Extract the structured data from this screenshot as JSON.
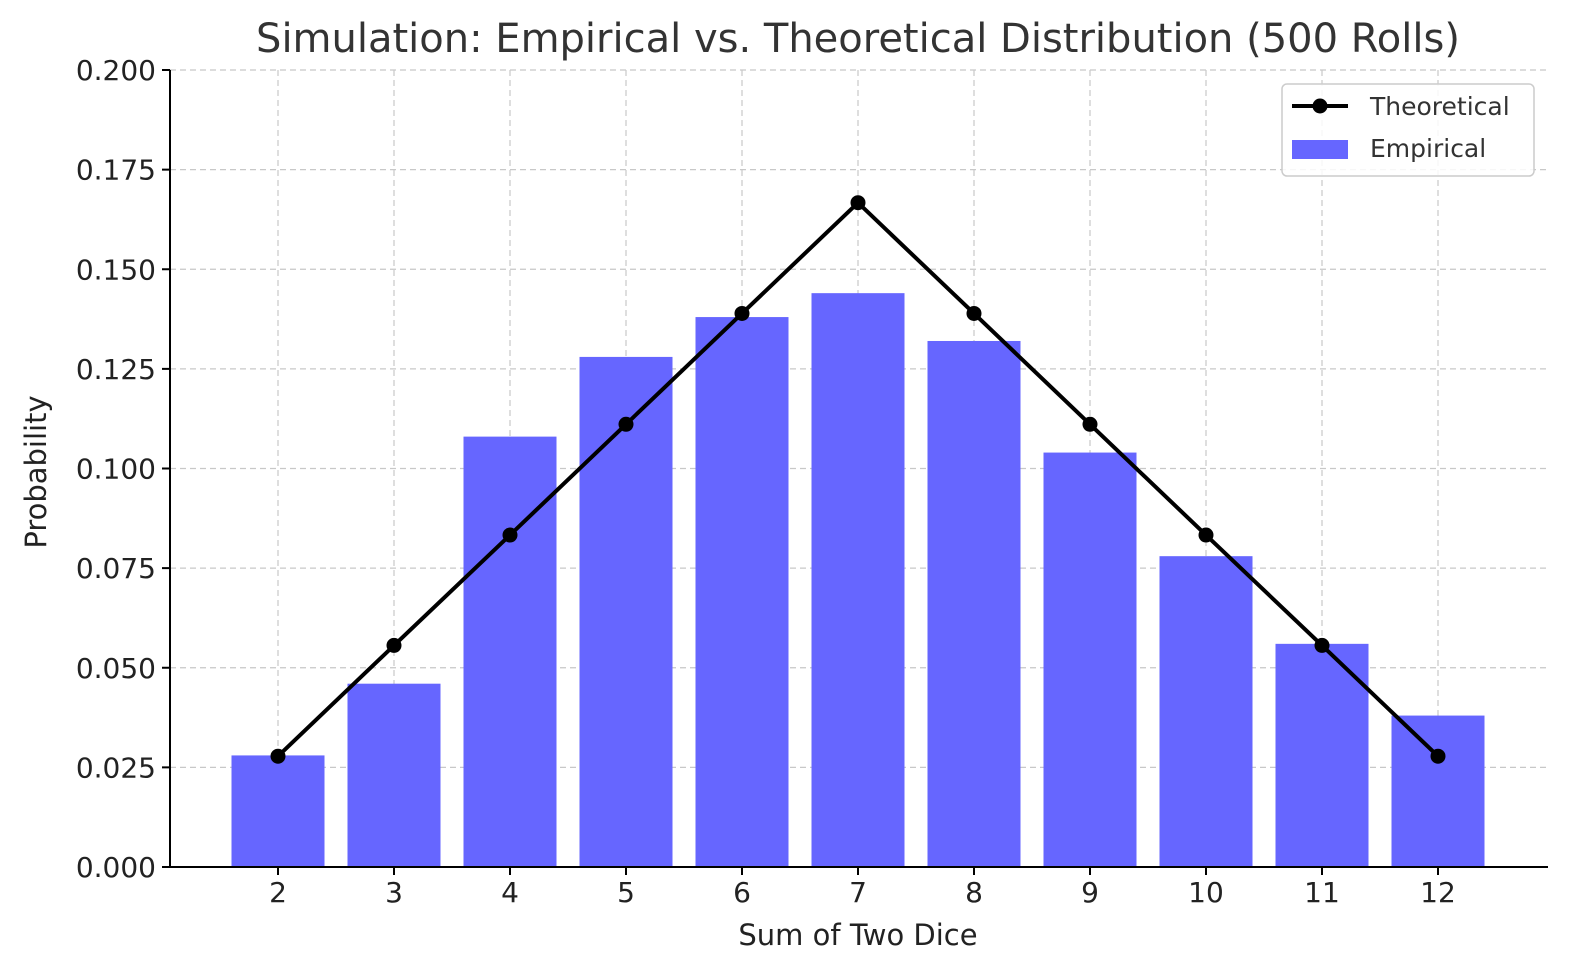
{
  "chart_data": {
    "type": "bar",
    "title": "Simulation: Empirical vs. Theoretical Distribution (500 Rolls)",
    "xlabel": "Sum of Two Dice",
    "ylabel": "Probability",
    "categories": [
      "2",
      "3",
      "4",
      "5",
      "6",
      "7",
      "8",
      "9",
      "10",
      "11",
      "12"
    ],
    "ylim": [
      0,
      0.2
    ],
    "yticks": [
      "0.000",
      "0.025",
      "0.050",
      "0.075",
      "0.100",
      "0.125",
      "0.150",
      "0.175",
      "0.200"
    ],
    "grid": true,
    "legend_position": "top-right",
    "series": [
      {
        "name": "Theoretical",
        "type": "line",
        "color": "#000000",
        "values": [
          0.0278,
          0.0556,
          0.0833,
          0.1111,
          0.1389,
          0.1667,
          0.1389,
          0.1111,
          0.0833,
          0.0556,
          0.0278
        ]
      },
      {
        "name": "Empirical",
        "type": "bar",
        "color": "#6666ff",
        "values": [
          0.028,
          0.046,
          0.108,
          0.128,
          0.138,
          0.144,
          0.132,
          0.104,
          0.078,
          0.056,
          0.038
        ]
      }
    ]
  }
}
